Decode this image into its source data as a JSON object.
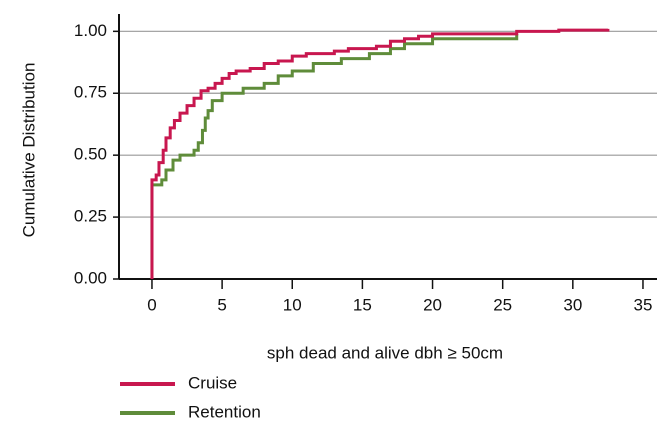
{
  "chart_data": {
    "type": "step",
    "ylabel": "Cumulative Distribution",
    "xlabel": "sph dead and alive dbh ≥ 50cm",
    "xlim": [
      -2.35,
      36.0
    ],
    "ylim": [
      0,
      1.07
    ],
    "xticks": [
      0,
      5,
      10,
      15,
      20,
      25,
      30,
      35
    ],
    "yticks": [
      {
        "value": 0,
        "label": "0.00"
      },
      {
        "value": 0.25,
        "label": "0.25"
      },
      {
        "value": 0.5,
        "label": "0.50"
      },
      {
        "value": 0.75,
        "label": "0.75"
      },
      {
        "value": 1,
        "label": "1.00"
      }
    ],
    "grid": true,
    "series": [
      {
        "name": "Cruise",
        "color": "#c8174f",
        "x": [
          0,
          0,
          0.3,
          0.5,
          0.8,
          1,
          1.3,
          1.6,
          2,
          2.5,
          3,
          3.5,
          4,
          4.5,
          5,
          5.5,
          6,
          7,
          8,
          9,
          10,
          11,
          13,
          14,
          16,
          17,
          18,
          19,
          20,
          26,
          29,
          32.5
        ],
        "values": [
          0,
          0.4,
          0.42,
          0.47,
          0.52,
          0.57,
          0.61,
          0.64,
          0.67,
          0.7,
          0.73,
          0.76,
          0.77,
          0.79,
          0.81,
          0.83,
          0.84,
          0.85,
          0.87,
          0.88,
          0.9,
          0.91,
          0.92,
          0.93,
          0.94,
          0.96,
          0.97,
          0.98,
          0.99,
          1.0,
          1.005,
          1.01
        ]
      },
      {
        "name": "Retention",
        "color": "#5f8c3a",
        "x": [
          0,
          0,
          0.7,
          1,
          1.5,
          2,
          3,
          3.3,
          3.6,
          3.8,
          4,
          4.3,
          5,
          6.5,
          8,
          9,
          10,
          11.5,
          13.5,
          15.5,
          17,
          18,
          20,
          26
        ],
        "values": [
          0,
          0.38,
          0.4,
          0.44,
          0.48,
          0.5,
          0.52,
          0.55,
          0.6,
          0.65,
          0.68,
          0.72,
          0.75,
          0.77,
          0.79,
          0.82,
          0.84,
          0.87,
          0.89,
          0.91,
          0.93,
          0.95,
          0.97,
          0.99
        ]
      }
    ]
  }
}
